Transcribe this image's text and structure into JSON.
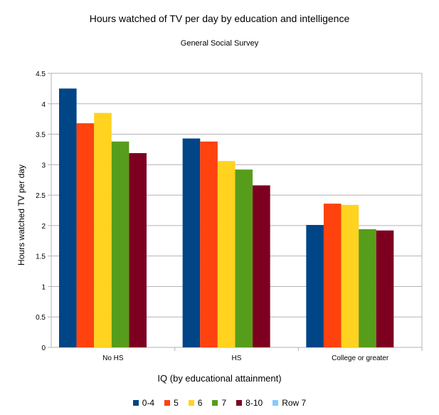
{
  "chart_data": {
    "type": "bar",
    "title": "Hours watched of TV per day by education and intelligence",
    "subtitle": "General Social Survey",
    "xlabel": "IQ (by educational attainment)",
    "ylabel": "Hours watched TV per day",
    "ylim": [
      0,
      4.5
    ],
    "ytick_step": 0.5,
    "yticks": [
      "0",
      "0.5",
      "1",
      "1.5",
      "2",
      "2.5",
      "3",
      "3.5",
      "4",
      "4.5"
    ],
    "grid": true,
    "legend_position": "bottom",
    "categories": [
      "No HS",
      "HS",
      "College or greater"
    ],
    "series": [
      {
        "name": "0-4",
        "color": "#004586",
        "values": [
          4.25,
          3.43,
          2.01
        ]
      },
      {
        "name": "5",
        "color": "#ff420e",
        "values": [
          3.68,
          3.38,
          2.36
        ]
      },
      {
        "name": "6",
        "color": "#ffd320",
        "values": [
          3.85,
          3.06,
          2.34
        ]
      },
      {
        "name": "7",
        "color": "#579d1c",
        "values": [
          3.38,
          2.92,
          1.94
        ]
      },
      {
        "name": "8-10",
        "color": "#7e0021",
        "values": [
          3.19,
          2.66,
          1.92
        ]
      },
      {
        "name": "Row 7",
        "color": "#83caff",
        "values": [
          0,
          0,
          0
        ]
      }
    ]
  }
}
